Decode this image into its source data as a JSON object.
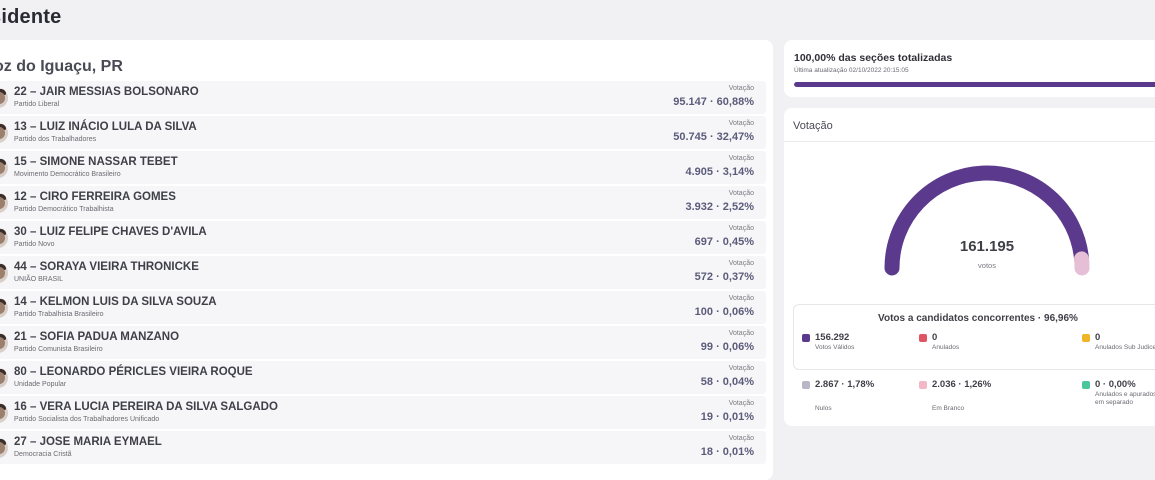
{
  "page": {
    "title": "sidente"
  },
  "city": "oz do Iguaçu, PR",
  "candidates": [
    {
      "name": "22 – JAIR MESSIAS BOLSONARO",
      "party": "Partido Liberal",
      "vote_label": "Votação",
      "votes": "95.147 · 60,88%"
    },
    {
      "name": "13 – LUIZ INÁCIO LULA DA SILVA",
      "party": "Partido dos Trabalhadores",
      "vote_label": "Votação",
      "votes": "50.745 · 32,47%"
    },
    {
      "name": "15 – SIMONE NASSAR TEBET",
      "party": "Movimento Democrático Brasileiro",
      "vote_label": "Votação",
      "votes": "4.905 · 3,14%"
    },
    {
      "name": "12 – CIRO FERREIRA GOMES",
      "party": "Partido Democrático Trabalhista",
      "vote_label": "Votação",
      "votes": "3.932 · 2,52%"
    },
    {
      "name": "30 – LUIZ FELIPE CHAVES D'AVILA",
      "party": "Partido Novo",
      "vote_label": "Votação",
      "votes": "697 · 0,45%"
    },
    {
      "name": "44 – SORAYA VIEIRA THRONICKE",
      "party": "UNIÃO BRASIL",
      "vote_label": "Votação",
      "votes": "572 · 0,37%"
    },
    {
      "name": "14 – KELMON LUIS DA SILVA SOUZA",
      "party": "Partido Trabalhista Brasileiro",
      "vote_label": "Votação",
      "votes": "100 · 0,06%"
    },
    {
      "name": "21 – SOFIA PADUA MANZANO",
      "party": "Partido Comunista Brasileiro",
      "vote_label": "Votação",
      "votes": "99 · 0,06%"
    },
    {
      "name": "80 – LEONARDO PÉRICLES VIEIRA ROQUE",
      "party": "Unidade Popular",
      "vote_label": "Votação",
      "votes": "58 · 0,04%"
    },
    {
      "name": "16 – VERA LUCIA PEREIRA DA SILVA SALGADO",
      "party": "Partido Socialista dos Trabalhadores Unificado",
      "vote_label": "Votação",
      "votes": "19 · 0,01%"
    },
    {
      "name": "27 – JOSE MARIA EYMAEL",
      "party": "Democracia Cristã",
      "vote_label": "Votação",
      "votes": "18 · 0,01%"
    }
  ],
  "progress": {
    "title": "100,00% das seções totalizadas",
    "updated": "Última atualização 02/10/2022 20:15:05",
    "fraction": 1.0
  },
  "votacao": {
    "title": "Votação",
    "total": "161.195",
    "unit": "votos",
    "gauge_main_fraction": 0.9696,
    "breakdown_title": "Votos a candidatos concorrentes · 96,96%",
    "stats": [
      {
        "value": "156.292",
        "label": "Votos Válidos",
        "color": "#5b3a8e"
      },
      {
        "value": "0",
        "label": "Anulados",
        "color": "#e05560"
      },
      {
        "value": "0",
        "label": "Anulados Sub Judice",
        "color": "#f0b429"
      },
      {
        "value": "2.867 · 1,78%",
        "label": "Nulos",
        "color": "#b9b6c7"
      },
      {
        "value": "2.036 · 1,26%",
        "label": "Em Branco",
        "color": "#f2b8c6"
      },
      {
        "value": "0 · 0,00%",
        "label": "Anulados e apurados em separado",
        "color": "#4cc79a"
      }
    ]
  },
  "colors": {
    "accent": "#5b3a8e",
    "gauge_secondary": "#e6bfd6"
  }
}
